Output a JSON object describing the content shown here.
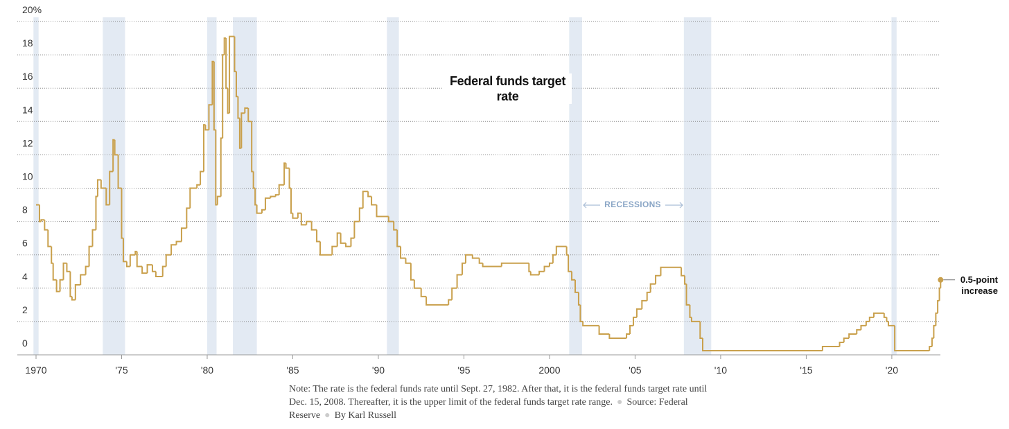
{
  "chart_data": {
    "type": "step",
    "title": "Federal funds target rate",
    "annotation": "0.5-point increase",
    "recession_label": "RECESSIONS",
    "note": "Note: The rate is the federal funds rate until Sept. 27, 1982. After that, it is the federal funds target rate until Dec. 15, 2008. Thereafter, it is the upper limit of the federal funds target rate range.",
    "source": "Source: Federal Reserve",
    "byline": "By Karl Russell",
    "color": "#c9a04c",
    "recession_color": "#e3eaf3",
    "grid": true,
    "xlim": [
      1969,
      2023
    ],
    "ylim": [
      0,
      20
    ],
    "xticks": [
      1970,
      {
        "value": 1975,
        "label": "'75"
      },
      {
        "value": 1980,
        "label": "'80"
      },
      {
        "value": 1985,
        "label": "'85"
      },
      {
        "value": 1990,
        "label": "'90"
      },
      {
        "value": 1995,
        "label": "'95"
      },
      2000,
      {
        "value": 2005,
        "label": "'05"
      },
      {
        "value": 2010,
        "label": "'10"
      },
      {
        "value": 2015,
        "label": "'15"
      },
      {
        "value": 2020,
        "label": "'20"
      }
    ],
    "yticks": [
      0,
      2,
      4,
      6,
      8,
      10,
      12,
      14,
      16,
      18,
      {
        "value": 20,
        "label": "20%"
      }
    ],
    "recessions": [
      [
        1969.85,
        1970.15
      ],
      [
        1973.9,
        1975.2
      ],
      [
        1980.0,
        1980.55
      ],
      [
        1981.5,
        1982.9
      ],
      [
        1990.5,
        1991.2
      ],
      [
        2001.15,
        2001.9
      ],
      [
        2007.85,
        2009.45
      ],
      [
        2019.98,
        2020.28
      ]
    ],
    "x": [
      1970.0,
      1970.2,
      1970.3,
      1970.5,
      1970.7,
      1970.9,
      1971.0,
      1971.2,
      1971.4,
      1971.6,
      1971.8,
      1972.0,
      1972.1,
      1972.3,
      1972.6,
      1972.9,
      1973.1,
      1973.3,
      1973.5,
      1973.6,
      1973.8,
      1974.1,
      1974.3,
      1974.5,
      1974.6,
      1974.8,
      1975.0,
      1975.1,
      1975.3,
      1975.5,
      1975.8,
      1975.9,
      1976.2,
      1976.5,
      1976.8,
      1977.0,
      1977.4,
      1977.6,
      1977.9,
      1978.2,
      1978.5,
      1978.8,
      1979.0,
      1979.4,
      1979.6,
      1979.8,
      1979.9,
      1980.1,
      1980.3,
      1980.4,
      1980.5,
      1980.6,
      1980.8,
      1980.9,
      1981.0,
      1981.1,
      1981.2,
      1981.3,
      1981.6,
      1981.7,
      1981.8,
      1981.9,
      1982.0,
      1982.2,
      1982.4,
      1982.6,
      1982.7,
      1982.8,
      1982.9,
      1983.2,
      1983.4,
      1983.7,
      1984.0,
      1984.2,
      1984.5,
      1984.6,
      1984.8,
      1984.9,
      1985.0,
      1985.3,
      1985.5,
      1985.8,
      1986.1,
      1986.4,
      1986.6,
      1987.3,
      1987.6,
      1987.8,
      1988.1,
      1988.4,
      1988.6,
      1988.9,
      1989.1,
      1989.4,
      1989.6,
      1989.9,
      1990.6,
      1990.9,
      1991.1,
      1991.3,
      1991.6,
      1991.9,
      1992.1,
      1992.5,
      1992.8,
      1994.1,
      1994.3,
      1994.6,
      1994.9,
      1995.1,
      1995.5,
      1995.9,
      1996.1,
      1997.2,
      1998.8,
      1998.9,
      1999.4,
      1999.7,
      2000.0,
      2000.2,
      2000.4,
      2001.0,
      2001.1,
      2001.3,
      2001.5,
      2001.7,
      2001.8,
      2001.95,
      2002.9,
      2003.5,
      2004.5,
      2004.7,
      2004.9,
      2005.1,
      2005.4,
      2005.7,
      2005.9,
      2006.2,
      2006.5,
      2007.7,
      2007.9,
      2008.0,
      2008.2,
      2008.3,
      2008.8,
      2008.95,
      2015.95,
      2016.95,
      2017.2,
      2017.5,
      2017.95,
      2018.2,
      2018.5,
      2018.7,
      2018.95,
      2019.55,
      2019.7,
      2019.8,
      2020.17,
      2022.2,
      2022.35,
      2022.45,
      2022.57,
      2022.68,
      2022.78,
      2022.85
    ],
    "values": [
      9,
      8,
      8.1,
      7.5,
      6.5,
      5.5,
      4.5,
      3.8,
      4.5,
      5.5,
      5,
      3.5,
      3.3,
      4.2,
      4.8,
      5.3,
      6.5,
      7.5,
      9.5,
      10.5,
      10,
      9,
      11,
      12.9,
      12,
      10,
      7,
      5.6,
      5.3,
      6,
      6.2,
      5.3,
      4.9,
      5.4,
      5,
      4.7,
      5.3,
      6,
      6.6,
      6.8,
      7.6,
      8.8,
      10,
      10.2,
      11,
      13.8,
      13.5,
      15,
      17.6,
      13.5,
      9,
      9.5,
      13,
      18,
      19,
      16,
      14.5,
      19.1,
      17,
      15.5,
      14.2,
      12.4,
      14.5,
      14.8,
      14,
      11,
      10,
      9,
      8.5,
      8.7,
      9.4,
      9.5,
      9.6,
      10.2,
      11.5,
      11.2,
      10,
      8.5,
      8.2,
      8.5,
      7.8,
      8,
      7.5,
      6.8,
      6,
      6.5,
      7.3,
      6.7,
      6.5,
      7,
      8,
      8.8,
      9.8,
      9.5,
      9,
      8.3,
      8,
      7.5,
      6.5,
      5.8,
      5.5,
      4.5,
      4,
      3.5,
      3,
      3.3,
      4,
      4.8,
      5.5,
      6,
      5.8,
      5.5,
      5.3,
      5.5,
      5,
      4.8,
      5,
      5.3,
      5.5,
      6,
      6.5,
      6,
      5,
      4.5,
      3.75,
      3,
      2,
      1.75,
      1.25,
      1,
      1.25,
      1.75,
      2.25,
      2.75,
      3.25,
      3.75,
      4.25,
      4.75,
      5.25,
      4.75,
      4.25,
      3,
      2.25,
      2,
      1,
      0.25,
      0.5,
      0.75,
      1,
      1.25,
      1.5,
      1.75,
      2,
      2.25,
      2.5,
      2.25,
      2,
      1.75,
      0.25,
      0.5,
      1,
      1.75,
      2.5,
      3.25,
      4,
      4.5
    ]
  }
}
